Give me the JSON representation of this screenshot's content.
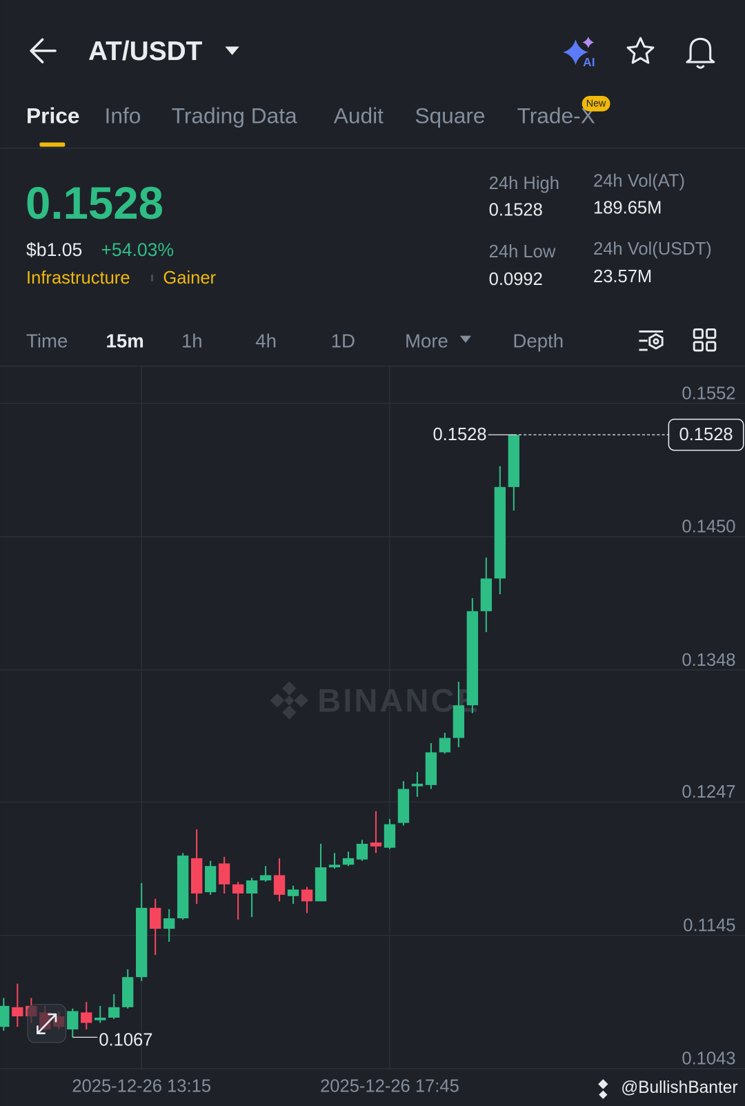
{
  "header": {
    "title": "AT/USDT",
    "ai_badge": "AI"
  },
  "tabs": {
    "items": [
      "Price",
      "Info",
      "Trading Data",
      "Audit",
      "Square",
      "Trade-X"
    ],
    "new_badge": "New"
  },
  "ticker": {
    "price": "0.1528",
    "fiat": "$b1.05",
    "change": "+54.03%",
    "tags": [
      "Infrastructure",
      "Gainer"
    ],
    "stats": [
      {
        "label": "24h High",
        "value": "0.1528"
      },
      {
        "label": "24h Vol(AT)",
        "value": "189.65M"
      },
      {
        "label": "24h Low",
        "value": "0.0992"
      },
      {
        "label": "24h Vol(USDT)",
        "value": "23.57M"
      }
    ]
  },
  "intervals": [
    "Time",
    "15m",
    "1h",
    "4h",
    "1D",
    "More",
    "Depth"
  ],
  "chart_data": {
    "type": "candlestick",
    "watermark": "BINANCE",
    "x": [
      "2025-12-26 10:45",
      "2025-12-26 11:00",
      "2025-12-26 11:15",
      "2025-12-26 11:30",
      "2025-12-26 11:45",
      "2025-12-26 12:00",
      "2025-12-26 12:15",
      "2025-12-26 12:30",
      "2025-12-26 12:45",
      "2025-12-26 13:00",
      "2025-12-26 13:15",
      "2025-12-26 13:30",
      "2025-12-26 13:45",
      "2025-12-26 14:00",
      "2025-12-26 14:15",
      "2025-12-26 14:30",
      "2025-12-26 14:45",
      "2025-12-26 15:00",
      "2025-12-26 15:15",
      "2025-12-26 15:30",
      "2025-12-26 15:45",
      "2025-12-26 16:00",
      "2025-12-26 16:15",
      "2025-12-26 16:30",
      "2025-12-26 16:45",
      "2025-12-26 17:00",
      "2025-12-26 17:15",
      "2025-12-26 17:30",
      "2025-12-26 17:45",
      "2025-12-26 18:00",
      "2025-12-26 18:15",
      "2025-12-26 18:30",
      "2025-12-26 18:45",
      "2025-12-26 19:00",
      "2025-12-26 19:15",
      "2025-12-26 19:30",
      "2025-12-26 19:45",
      "2025-12-26 20:00"
    ],
    "open": [
      0.1075,
      0.109,
      0.1091,
      0.1086,
      0.1083,
      0.1073,
      0.1086,
      0.108,
      0.1082,
      0.109,
      0.1113,
      0.1166,
      0.115,
      0.1158,
      0.1204,
      0.1178,
      0.12,
      0.1184,
      0.1177,
      0.1187,
      0.1191,
      0.1175,
      0.118,
      0.1171,
      0.1197,
      0.1199,
      0.1203,
      0.1216,
      0.1212,
      0.1231,
      0.1259,
      0.126,
      0.1285,
      0.1296,
      0.1321,
      0.1393,
      0.1418,
      0.1488
    ],
    "high": [
      0.1097,
      0.1108,
      0.1097,
      0.1091,
      0.1087,
      0.1089,
      0.1094,
      0.1091,
      0.11,
      0.1119,
      0.1185,
      0.1173,
      0.1165,
      0.1208,
      0.1226,
      0.1202,
      0.1205,
      0.1186,
      0.1189,
      0.1198,
      0.1204,
      0.1183,
      0.1182,
      0.1215,
      0.1208,
      0.1209,
      0.1218,
      0.124,
      0.1234,
      0.1263,
      0.127,
      0.1292,
      0.13,
      0.1339,
      0.1403,
      0.1434,
      0.1504,
      0.1528
    ],
    "low": [
      0.1072,
      0.1075,
      0.1078,
      0.1072,
      0.1073,
      0.1067,
      0.1073,
      0.1078,
      0.1081,
      0.1089,
      0.111,
      0.113,
      0.114,
      0.1157,
      0.1169,
      0.1176,
      0.1177,
      0.1157,
      0.1159,
      0.1186,
      0.1171,
      0.1169,
      0.1162,
      0.1171,
      0.1196,
      0.1198,
      0.1202,
      0.1208,
      0.1211,
      0.1229,
      0.1251,
      0.1257,
      0.1284,
      0.1289,
      0.1315,
      0.1377,
      0.1406,
      0.147
    ],
    "close": [
      0.1091,
      0.1083,
      0.1083,
      0.1073,
      0.1075,
      0.1087,
      0.1078,
      0.1082,
      0.109,
      0.1113,
      0.1166,
      0.115,
      0.1158,
      0.1206,
      0.1177,
      0.1198,
      0.1184,
      0.1177,
      0.1187,
      0.1191,
      0.1176,
      0.118,
      0.1171,
      0.1197,
      0.1199,
      0.1204,
      0.1215,
      0.1213,
      0.123,
      0.1257,
      0.1261,
      0.1285,
      0.1296,
      0.1321,
      0.1393,
      0.1418,
      0.1488,
      0.1528
    ],
    "up_color": "#2ebd85",
    "down_color": "#f6465d",
    "ylim": [
      0.1043,
      0.158
    ],
    "yticks": [
      0.1552,
      {
        "value": 0.145,
        "label": "0.1450"
      },
      0.1348,
      0.1247,
      0.1145,
      0.1043
    ],
    "xticks": [
      "2025-12-26 13:15",
      "2025-12-26 17:45"
    ],
    "grid": true,
    "max_label": 0.1528,
    "min_label": 0.1067,
    "last_price": 0.1528
  },
  "footer": {
    "credit": "@BullishBanter"
  }
}
